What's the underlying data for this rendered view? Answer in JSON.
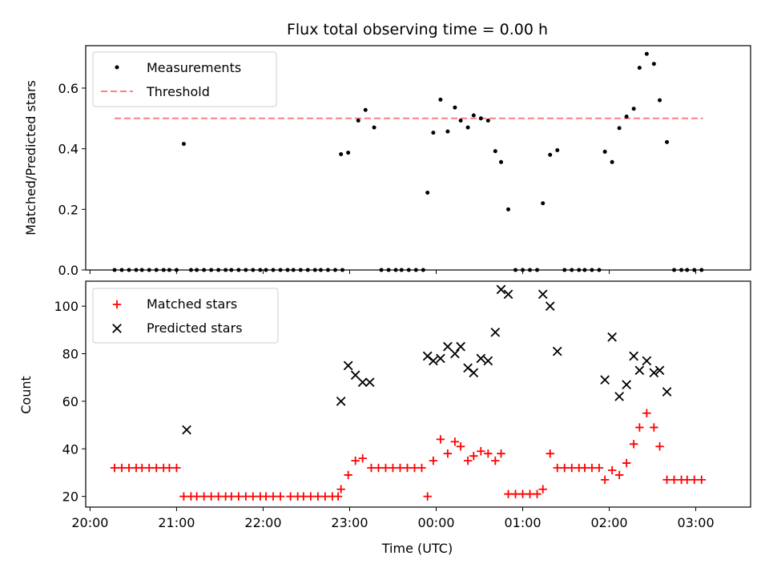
{
  "chart_data": [
    {
      "type": "scatter",
      "title": "Flux total observing time = 0.00 h",
      "xlabel": "",
      "ylabel": "Matched/Predicted stars",
      "ylim": [
        0,
        0.74
      ],
      "yticks": [
        0.0,
        0.2,
        0.4,
        0.6
      ],
      "ytick_labels": [
        "0.0",
        "0.2",
        "0.4",
        "0.6"
      ],
      "legend": {
        "placement": "top-left",
        "entries": [
          "Measurements",
          "Threshold"
        ]
      },
      "threshold": {
        "name": "Threshold",
        "value": 0.5,
        "x_start": "20:17",
        "x_end": "03:05",
        "color": "#ff7f7f"
      },
      "series": [
        {
          "name": "Measurements",
          "color": "#000000",
          "points": [
            [
              "20:17",
              0
            ],
            [
              "20:22",
              0
            ],
            [
              "20:27",
              0
            ],
            [
              "20:32",
              0
            ],
            [
              "20:36",
              0
            ],
            [
              "20:41",
              0
            ],
            [
              "20:46",
              0
            ],
            [
              "20:51",
              0
            ],
            [
              "20:55",
              0
            ],
            [
              "21:00",
              0
            ],
            [
              "21:05",
              0.416
            ],
            [
              "21:10",
              0
            ],
            [
              "21:14",
              0
            ],
            [
              "21:19",
              0
            ],
            [
              "21:24",
              0
            ],
            [
              "21:29",
              0
            ],
            [
              "21:34",
              0
            ],
            [
              "21:38",
              0
            ],
            [
              "21:43",
              0
            ],
            [
              "21:48",
              0
            ],
            [
              "21:53",
              0
            ],
            [
              "21:58",
              0
            ],
            [
              "22:02",
              0
            ],
            [
              "22:07",
              0
            ],
            [
              "22:12",
              0
            ],
            [
              "22:17",
              0
            ],
            [
              "22:21",
              0
            ],
            [
              "22:26",
              0
            ],
            [
              "22:31",
              0
            ],
            [
              "22:36",
              0
            ],
            [
              "22:40",
              0
            ],
            [
              "22:45",
              0
            ],
            [
              "22:50",
              0
            ],
            [
              "22:55",
              0
            ],
            [
              "22:54",
              0.382
            ],
            [
              "22:59",
              0.387
            ],
            [
              "23:06",
              0.493
            ],
            [
              "23:11",
              0.528
            ],
            [
              "23:17",
              0.47
            ],
            [
              "23:22",
              0
            ],
            [
              "23:27",
              0
            ],
            [
              "23:32",
              0
            ],
            [
              "23:36",
              0
            ],
            [
              "23:41",
              0
            ],
            [
              "23:46",
              0
            ],
            [
              "23:51",
              0
            ],
            [
              "23:54",
              0.255
            ],
            [
              "23:58",
              0.453
            ],
            [
              "00:03",
              0.562
            ],
            [
              "00:08",
              0.457
            ],
            [
              "00:13",
              0.536
            ],
            [
              "00:17",
              0.493
            ],
            [
              "00:22",
              0.47
            ],
            [
              "00:26",
              0.51
            ],
            [
              "00:31",
              0.5
            ],
            [
              "00:36",
              0.493
            ],
            [
              "00:41",
              0.392
            ],
            [
              "00:45",
              0.356
            ],
            [
              "00:50",
              0.2
            ],
            [
              "00:55",
              0
            ],
            [
              "01:00",
              0
            ],
            [
              "01:05",
              0
            ],
            [
              "01:10",
              0
            ],
            [
              "01:14",
              0.22
            ],
            [
              "01:19",
              0.38
            ],
            [
              "01:24",
              0.395
            ],
            [
              "01:29",
              0
            ],
            [
              "01:34",
              0
            ],
            [
              "01:39",
              0
            ],
            [
              "01:43",
              0
            ],
            [
              "01:48",
              0
            ],
            [
              "01:53",
              0
            ],
            [
              "01:57",
              0.39
            ],
            [
              "02:02",
              0.356
            ],
            [
              "02:07",
              0.468
            ],
            [
              "02:12",
              0.506
            ],
            [
              "02:17",
              0.532
            ],
            [
              "02:21",
              0.667
            ],
            [
              "02:26",
              0.713
            ],
            [
              "02:31",
              0.68
            ],
            [
              "02:35",
              0.56
            ],
            [
              "02:40",
              0.422
            ],
            [
              "02:45",
              0
            ],
            [
              "02:50",
              0
            ],
            [
              "02:54",
              0
            ],
            [
              "02:59",
              0
            ],
            [
              "03:04",
              0
            ]
          ]
        }
      ]
    },
    {
      "type": "scatter",
      "title": "",
      "xlabel": "Time (UTC)",
      "ylabel": "Count",
      "ylim": [
        15.5,
        110.5
      ],
      "yticks": [
        20,
        40,
        60,
        80,
        100
      ],
      "ytick_labels": [
        "20",
        "40",
        "60",
        "80",
        "100"
      ],
      "xlim": [
        "19:57",
        "03:38"
      ],
      "xticks": [
        "20:00",
        "21:00",
        "22:00",
        "23:00",
        "00:00",
        "01:00",
        "02:00",
        "03:00"
      ],
      "xtick_labels": [
        "20:00",
        "21:00",
        "22:00",
        "23:00",
        "00:00",
        "01:00",
        "02:00",
        "03:00"
      ],
      "legend": {
        "placement": "top-left",
        "entries": [
          "Matched stars",
          "Predicted stars"
        ]
      },
      "series": [
        {
          "name": "Matched stars",
          "color": "#ff0000",
          "marker": "plus",
          "points": [
            [
              "20:17",
              32
            ],
            [
              "20:22",
              32
            ],
            [
              "20:27",
              32
            ],
            [
              "20:32",
              32
            ],
            [
              "20:36",
              32
            ],
            [
              "20:41",
              32
            ],
            [
              "20:46",
              32
            ],
            [
              "20:51",
              32
            ],
            [
              "20:55",
              32
            ],
            [
              "21:00",
              32
            ],
            [
              "21:05",
              20
            ],
            [
              "21:10",
              20
            ],
            [
              "21:14",
              20
            ],
            [
              "21:19",
              20
            ],
            [
              "21:24",
              20
            ],
            [
              "21:29",
              20
            ],
            [
              "21:34",
              20
            ],
            [
              "21:38",
              20
            ],
            [
              "21:43",
              20
            ],
            [
              "21:48",
              20
            ],
            [
              "21:53",
              20
            ],
            [
              "21:58",
              20
            ],
            [
              "22:02",
              20
            ],
            [
              "22:07",
              20
            ],
            [
              "22:12",
              20
            ],
            [
              "22:19",
              20
            ],
            [
              "22:24",
              20
            ],
            [
              "22:28",
              20
            ],
            [
              "22:33",
              20
            ],
            [
              "22:38",
              20
            ],
            [
              "22:43",
              20
            ],
            [
              "22:48",
              20
            ],
            [
              "22:52",
              20
            ],
            [
              "22:54",
              23
            ],
            [
              "22:59",
              29
            ],
            [
              "23:04",
              35
            ],
            [
              "23:09",
              36
            ],
            [
              "23:15",
              32
            ],
            [
              "23:20",
              32
            ],
            [
              "23:25",
              32
            ],
            [
              "23:30",
              32
            ],
            [
              "23:35",
              32
            ],
            [
              "23:40",
              32
            ],
            [
              "23:45",
              32
            ],
            [
              "23:50",
              32
            ],
            [
              "23:54",
              20
            ],
            [
              "23:58",
              35
            ],
            [
              "00:03",
              44
            ],
            [
              "00:08",
              38
            ],
            [
              "00:13",
              43
            ],
            [
              "00:17",
              41
            ],
            [
              "00:22",
              35
            ],
            [
              "00:26",
              37
            ],
            [
              "00:31",
              39
            ],
            [
              "00:36",
              38
            ],
            [
              "00:41",
              35
            ],
            [
              "00:45",
              38
            ],
            [
              "00:50",
              21
            ],
            [
              "00:55",
              21
            ],
            [
              "01:00",
              21
            ],
            [
              "01:05",
              21
            ],
            [
              "01:10",
              21
            ],
            [
              "01:14",
              23
            ],
            [
              "01:19",
              38
            ],
            [
              "01:24",
              32
            ],
            [
              "01:29",
              32
            ],
            [
              "01:34",
              32
            ],
            [
              "01:39",
              32
            ],
            [
              "01:43",
              32
            ],
            [
              "01:48",
              32
            ],
            [
              "01:53",
              32
            ],
            [
              "01:57",
              27
            ],
            [
              "02:02",
              31
            ],
            [
              "02:07",
              29
            ],
            [
              "02:12",
              34
            ],
            [
              "02:17",
              42
            ],
            [
              "02:21",
              49
            ],
            [
              "02:26",
              55
            ],
            [
              "02:31",
              49
            ],
            [
              "02:35",
              41
            ],
            [
              "02:40",
              27
            ],
            [
              "02:45",
              27
            ],
            [
              "02:50",
              27
            ],
            [
              "02:54",
              27
            ],
            [
              "02:59",
              27
            ],
            [
              "03:04",
              27
            ]
          ]
        },
        {
          "name": "Predicted stars",
          "color": "#000000",
          "marker": "x",
          "points": [
            [
              "21:07",
              48
            ],
            [
              "22:54",
              60
            ],
            [
              "22:59",
              75
            ],
            [
              "23:04",
              71
            ],
            [
              "23:09",
              68
            ],
            [
              "23:14",
              68
            ],
            [
              "23:54",
              79
            ],
            [
              "23:58",
              77
            ],
            [
              "00:03",
              78
            ],
            [
              "00:08",
              83
            ],
            [
              "00:13",
              80
            ],
            [
              "00:17",
              83
            ],
            [
              "00:22",
              74
            ],
            [
              "00:26",
              72
            ],
            [
              "00:31",
              78
            ],
            [
              "00:36",
              77
            ],
            [
              "00:41",
              89
            ],
            [
              "00:45",
              107
            ],
            [
              "00:50",
              105
            ],
            [
              "01:14",
              105
            ],
            [
              "01:19",
              100
            ],
            [
              "01:24",
              81
            ],
            [
              "01:57",
              69
            ],
            [
              "02:02",
              87
            ],
            [
              "02:07",
              62
            ],
            [
              "02:12",
              67
            ],
            [
              "02:17",
              79
            ],
            [
              "02:21",
              73
            ],
            [
              "02:26",
              77
            ],
            [
              "02:31",
              72
            ],
            [
              "02:35",
              73
            ],
            [
              "02:40",
              64
            ]
          ]
        }
      ]
    }
  ]
}
